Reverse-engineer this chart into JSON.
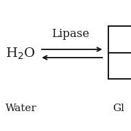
{
  "background_color": "#ffffff",
  "h2o_text": "H$_2$O",
  "water_label": "Water",
  "enzyme_label": "Lipase",
  "product_label": "Gl",
  "text_color": "#1a1a1a",
  "arrow_color": "#1a1a1a",
  "box_color": "#1a1a1a",
  "figsize": [
    1.91,
    1.91
  ],
  "dpi": 100,
  "h2o_fontsize": 14,
  "water_fontsize": 11,
  "enzyme_fontsize": 12,
  "product_fontsize": 11
}
